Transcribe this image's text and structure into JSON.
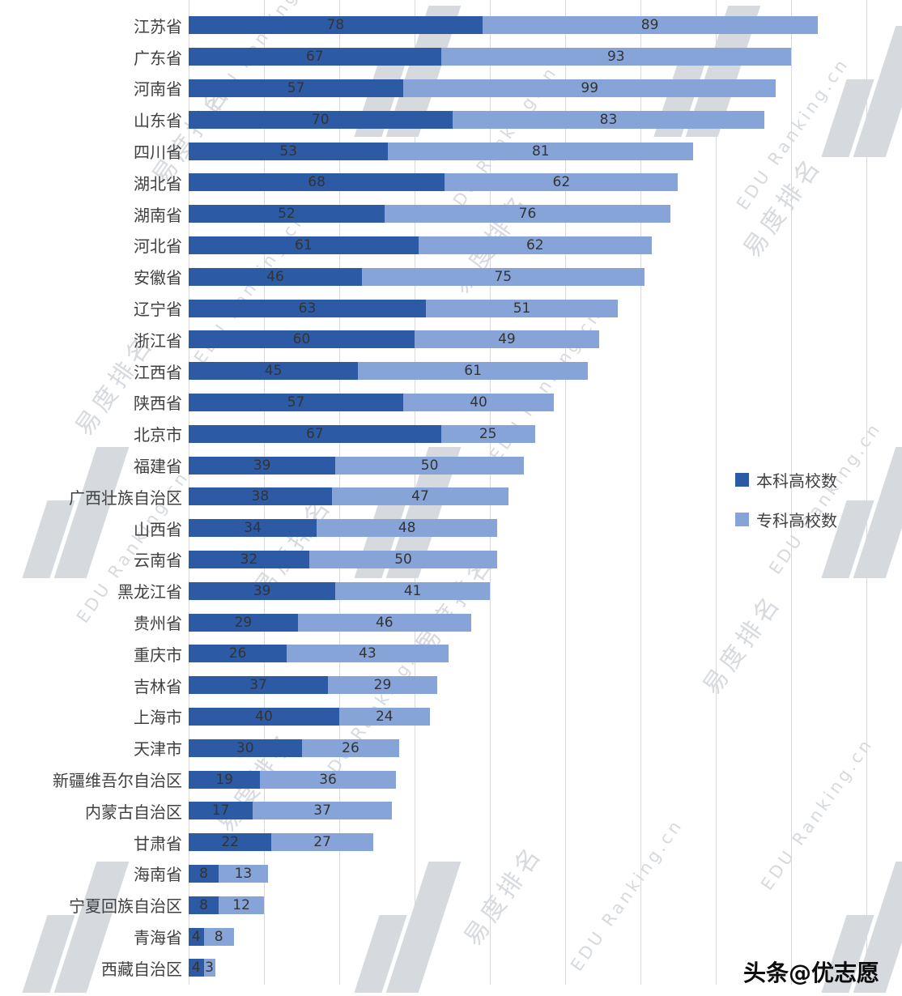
{
  "chart_data": {
    "type": "bar",
    "orientation": "horizontal",
    "stacked": true,
    "grid": true,
    "gridline_interval": 20,
    "xlim": [
      0,
      180
    ],
    "legend_position": "middle-right",
    "value_labels": "inside-center",
    "categories": [
      "江苏省",
      "广东省",
      "河南省",
      "山东省",
      "四川省",
      "湖北省",
      "湖南省",
      "河北省",
      "安徽省",
      "辽宁省",
      "浙江省",
      "江西省",
      "陕西省",
      "北京市",
      "福建省",
      "广西壮族自治区",
      "山西省",
      "云南省",
      "黑龙江省",
      "贵州省",
      "重庆市",
      "吉林省",
      "上海市",
      "天津市",
      "新疆维吾尔自治区",
      "内蒙古自治区",
      "甘肃省",
      "海南省",
      "宁夏回族自治区",
      "青海省",
      "西藏自治区"
    ],
    "series": [
      {
        "name": "本科高校数",
        "color": "#2d5aa5",
        "values": [
          78,
          67,
          57,
          70,
          53,
          68,
          52,
          61,
          46,
          63,
          60,
          45,
          57,
          67,
          39,
          38,
          34,
          32,
          39,
          29,
          26,
          37,
          40,
          30,
          19,
          17,
          22,
          8,
          8,
          4,
          4
        ]
      },
      {
        "name": "专科高校数",
        "color": "#87a4d8",
        "values": [
          89,
          93,
          99,
          83,
          81,
          62,
          76,
          62,
          75,
          51,
          49,
          61,
          40,
          25,
          50,
          47,
          48,
          50,
          41,
          46,
          43,
          29,
          24,
          26,
          36,
          37,
          27,
          13,
          12,
          8,
          3
        ]
      }
    ]
  },
  "watermark": {
    "brand_cn": "易度排名",
    "brand_en": "EDU Ranking.cn"
  },
  "footer": {
    "credit": "头条@优志愿"
  },
  "colors": {
    "undergrad": "#2d5aa5",
    "vocational": "#87a4d8",
    "gridline": "#d9d9d9",
    "category_text": "#404040",
    "value_text": "#333333",
    "watermark": "#d6d9de"
  }
}
